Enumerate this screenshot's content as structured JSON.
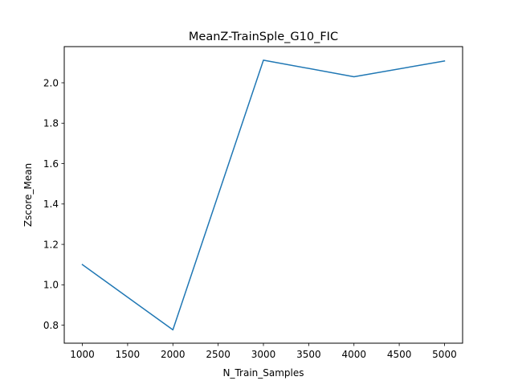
{
  "chart_data": {
    "type": "line",
    "title": "MeanZ-TrainSple_G10_FIC",
    "xlabel": "N_Train_Samples",
    "ylabel": "Zscore_Mean",
    "x": [
      1000,
      2000,
      3000,
      4000,
      5000
    ],
    "series": [
      {
        "values": [
          1.1,
          0.777,
          2.112,
          2.03,
          2.108
        ],
        "color": "#1f77b4"
      }
    ],
    "xlim": [
      800,
      5200
    ],
    "ylim": [
      0.711,
      2.179
    ],
    "xticks": [
      1000,
      1500,
      2000,
      2500,
      3000,
      3500,
      4000,
      4500,
      5000
    ],
    "xtick_labels": [
      "1000",
      "1500",
      "2000",
      "2500",
      "3000",
      "3500",
      "4000",
      "4500",
      "5000"
    ],
    "yticks": [
      0.8,
      1.0,
      1.2,
      1.4,
      1.6,
      1.8,
      2.0
    ],
    "ytick_labels": [
      "0.8",
      "1.0",
      "1.2",
      "1.4",
      "1.6",
      "1.8",
      "2.0"
    ],
    "grid": false,
    "legend": "none"
  }
}
